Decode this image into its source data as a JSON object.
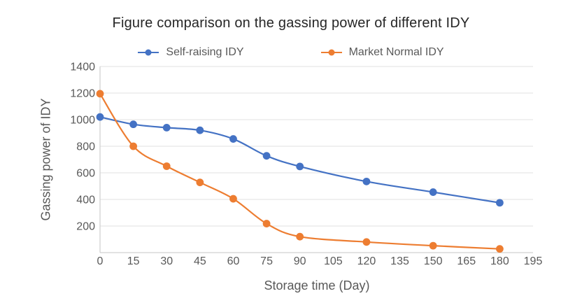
{
  "chart_data": {
    "type": "line",
    "title": "Figure comparison on the gassing power of different IDY",
    "xlabel": "Storage time (Day)",
    "ylabel": "Gassing power of IDY",
    "x": [
      0,
      15,
      30,
      45,
      60,
      75,
      90,
      120,
      150,
      180
    ],
    "series": [
      {
        "name": "Self-raising IDY",
        "color": "#4472C4",
        "values": [
          1020,
          965,
          940,
          920,
          855,
          728,
          648,
          535,
          455,
          375
        ]
      },
      {
        "name": "Market Normal IDY",
        "color": "#ED7D31",
        "values": [
          1195,
          800,
          650,
          528,
          405,
          218,
          120,
          80,
          52,
          28
        ]
      }
    ],
    "xlim": [
      0,
      195
    ],
    "ylim": [
      0,
      1400
    ],
    "x_ticks": [
      0,
      15,
      30,
      45,
      60,
      75,
      90,
      105,
      120,
      135,
      150,
      165,
      180,
      195
    ],
    "y_ticks": [
      200,
      400,
      600,
      800,
      1000,
      1200,
      1400
    ],
    "grid": "horizontal",
    "legend_position": "top",
    "line_style": "smooth",
    "marker": "circle",
    "colors": {
      "grid": "#E2E2E2",
      "axis": "#C6C6C6",
      "tick_label": "#595959",
      "title": "#262626"
    }
  }
}
